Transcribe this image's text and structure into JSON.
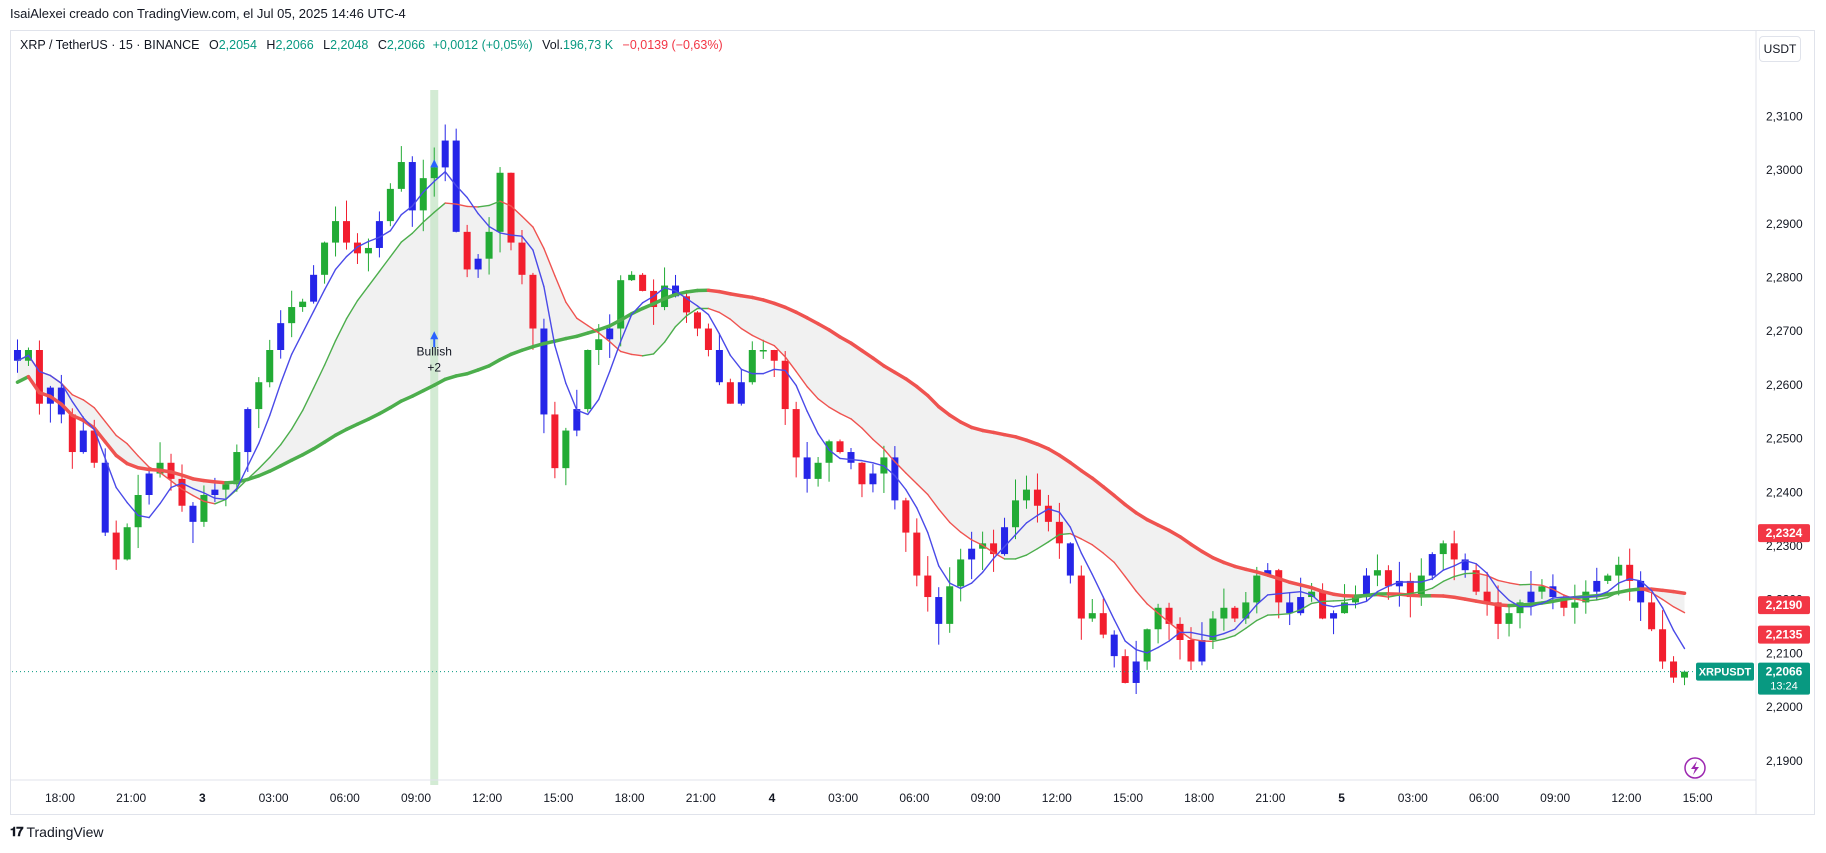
{
  "header": {
    "attribution": "IsaiAlexei creado con TradingView.com, el Jul 05, 2025 14:46 UTC-4"
  },
  "legend": {
    "symbol": "XRP / TetherUS · 15 · BINANCE",
    "open_label": "O",
    "open": "2,2054",
    "high_label": "H",
    "high": "2,2066",
    "low_label": "L",
    "low": "2,2048",
    "close_label": "C",
    "close": "2,2066",
    "change": "+0,0012 (+0,05%)",
    "vol_label": "Vol.",
    "vol": "196,73 K",
    "vol_change": "−0,0139 (−0,63%)"
  },
  "currency_button": "USDT",
  "footer": {
    "brand": "TradingView"
  },
  "colors": {
    "up": "#089981",
    "down": "#f23645",
    "candle_up": "#22ab35",
    "candle_dn": "#f21e2e",
    "candle_blue": "#2525e8",
    "ma_blue": "#4a4ae8",
    "ema_green": "#4cae4c",
    "ema_red": "#ef5350",
    "fill": "#f0f0f0",
    "signal_band": "#c8e6c9",
    "accent": "#9c27b0"
  },
  "chart_data": {
    "type": "candlestick",
    "symbol": "XRPUSDT",
    "ylim": [
      2.1855,
      2.3205
    ],
    "y_ticks": [
      "2,1900",
      "2,2000",
      "2,2100",
      "2,2200",
      "2,2300",
      "2,2400",
      "2,2500",
      "2,2600",
      "2,2700",
      "2,2800",
      "2,2900",
      "2,3000",
      "2,3100"
    ],
    "x_ticks": [
      "18:00",
      "21:00",
      "3",
      "03:00",
      "06:00",
      "09:00",
      "12:00",
      "15:00",
      "18:00",
      "21:00",
      "4",
      "03:00",
      "06:00",
      "09:00",
      "12:00",
      "15:00",
      "18:00",
      "21:00",
      "5",
      "03:00",
      "06:00",
      "09:00",
      "12:00",
      "15:00"
    ],
    "price_labels": [
      {
        "text": "2,2324",
        "value": 2.2324,
        "color": "#f23645"
      },
      {
        "text": "2,2190",
        "value": 2.219,
        "color": "#f23645"
      },
      {
        "text": "2,2135",
        "value": 2.2135,
        "color": "#f23645"
      }
    ],
    "last_price": {
      "symbol": "XRPUSDT",
      "value": 2.2066,
      "text": "2,2066",
      "countdown": "13:24",
      "color": "#089981"
    },
    "signal": {
      "label": "Bullish",
      "sublabel": "+2"
    },
    "candles_ohlc_path": [
      2.2645,
      2.2665,
      2.2565,
      2.2595,
      2.2545,
      2.2475,
      2.2515,
      2.2455,
      2.2325,
      2.2275,
      2.2335,
      2.2395,
      2.2435,
      2.2455,
      2.2425,
      2.2375,
      2.2345,
      2.2395,
      2.2405,
      2.2415,
      2.2475,
      2.2555,
      2.2605,
      2.2665,
      2.2715,
      2.2745,
      2.2755,
      2.2805,
      2.2865,
      2.2905,
      2.2865,
      2.2845,
      2.2855,
      2.2905,
      2.2965,
      2.3015,
      2.2925,
      2.2985,
      2.3005,
      2.3055,
      2.2885,
      2.2815,
      2.2835,
      2.2885,
      2.2995,
      2.2865,
      2.2805,
      2.2705,
      2.2545,
      2.2445,
      2.2515,
      2.2555,
      2.2665,
      2.2685,
      2.2705,
      2.2795,
      2.2805,
      2.2775,
      2.2745,
      2.2785,
      2.2765,
      2.2735,
      2.2705,
      2.2665,
      2.2605,
      2.2565,
      2.2605,
      2.2665,
      2.2665,
      2.2645,
      2.2555,
      2.2465,
      2.2425,
      2.2455,
      2.2495,
      2.2475,
      2.2455,
      2.2415,
      2.2435,
      2.2465,
      2.2385,
      2.2325,
      2.2245,
      2.2205,
      2.2155,
      2.2225,
      2.2275,
      2.2295,
      2.2305,
      2.2285,
      2.2335,
      2.2385,
      2.2405,
      2.2375,
      2.2345,
      2.2305,
      2.2245,
      2.2165,
      2.2175,
      2.2135,
      2.2095,
      2.2045,
      2.2085,
      2.2145,
      2.2185,
      2.2155,
      2.2125,
      2.2085,
      2.2125,
      2.2165,
      2.2185,
      2.2165,
      2.2195,
      2.2245,
      2.2255,
      2.2195,
      2.2175,
      2.2205,
      2.2215,
      2.2165,
      2.2175,
      2.2195,
      2.2205,
      2.2245,
      2.2255,
      2.2225,
      2.2235,
      2.2205,
      2.2245,
      2.2285,
      2.2305,
      2.2275,
      2.2255,
      2.2215,
      2.2195,
      2.2155,
      2.2175,
      2.2195,
      2.2215,
      2.2225,
      2.2205,
      2.2185,
      2.2195,
      2.2215,
      2.2235,
      2.2245,
      2.2265,
      2.2235,
      2.2195,
      2.2145,
      2.2085,
      2.2055,
      2.2066
    ],
    "overlays": [
      {
        "type": "line",
        "color": "#4a4ae8",
        "role": "fast MA (blue)"
      },
      {
        "type": "line",
        "color": "#ef5350 / #4cae4c",
        "role": "mid MA (red/green)"
      },
      {
        "type": "line",
        "color": "#4cae4c / #ef5350",
        "role": "slow MA (green/red, thick)"
      }
    ]
  }
}
